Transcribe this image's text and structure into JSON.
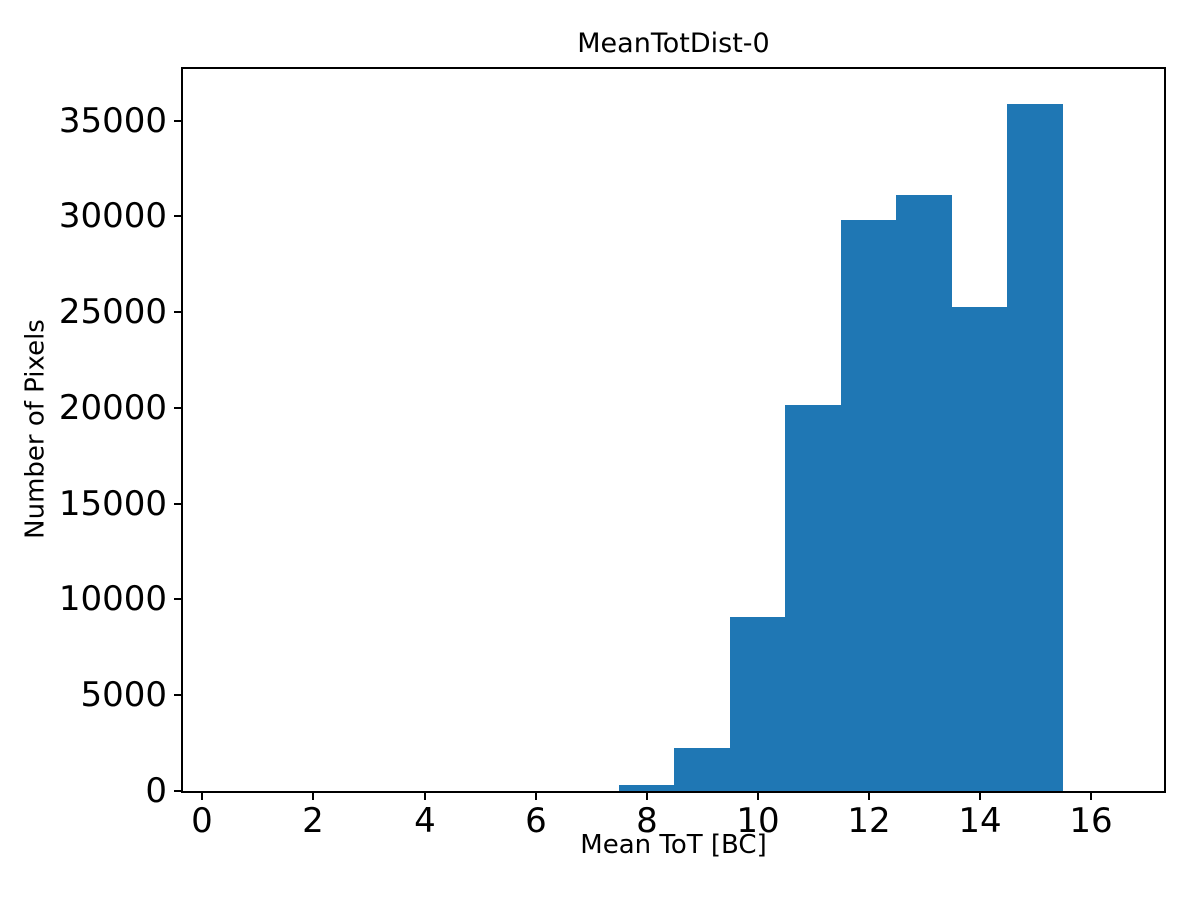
{
  "figure": {
    "background": "#ffffff",
    "text_color": "#000000"
  },
  "chart_data": {
    "type": "bar",
    "subtype": "histogram",
    "title": "MeanTotDist-0",
    "xlabel": "Mean ToT [BC]",
    "ylabel": "Number of Pixels",
    "bin_edges": [
      7.5,
      8.5,
      9.5,
      10.5,
      11.5,
      12.5,
      13.5,
      14.5,
      15.5
    ],
    "counts": [
      310,
      2240,
      9060,
      20160,
      29790,
      31140,
      25260,
      35880
    ],
    "bar_color": "#1f77b4",
    "xlim": [
      -0.35,
      17.32
    ],
    "ylim": [
      0,
      37700
    ],
    "xticks": [
      0,
      2,
      4,
      6,
      8,
      10,
      12,
      14,
      16
    ],
    "yticks": [
      0,
      5000,
      10000,
      15000,
      20000,
      25000,
      30000,
      35000
    ],
    "grid": false,
    "legend_position": "none"
  }
}
